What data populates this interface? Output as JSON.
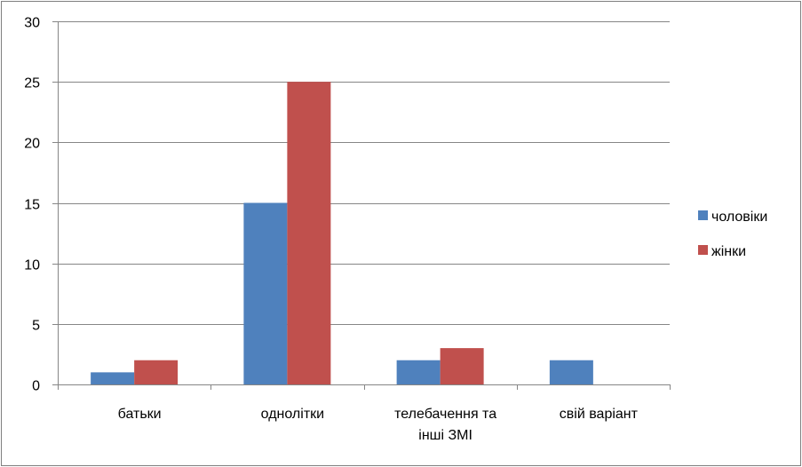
{
  "chart_data": {
    "type": "bar",
    "categories": [
      [
        "батьки"
      ],
      [
        "однолітки"
      ],
      [
        "телебачення та",
        "інші ЗМІ"
      ],
      [
        "свій варіант"
      ]
    ],
    "series": [
      {
        "name": "чоловіки",
        "color": "#4f81bd",
        "values": [
          1,
          15,
          2,
          2
        ]
      },
      {
        "name": "жінки",
        "color": "#c0504d",
        "values": [
          2,
          25,
          3,
          0
        ]
      }
    ],
    "ylim": [
      0,
      30
    ],
    "yticks": [
      0,
      5,
      10,
      15,
      20,
      25,
      30
    ],
    "grid": true,
    "legend_position": "right"
  }
}
